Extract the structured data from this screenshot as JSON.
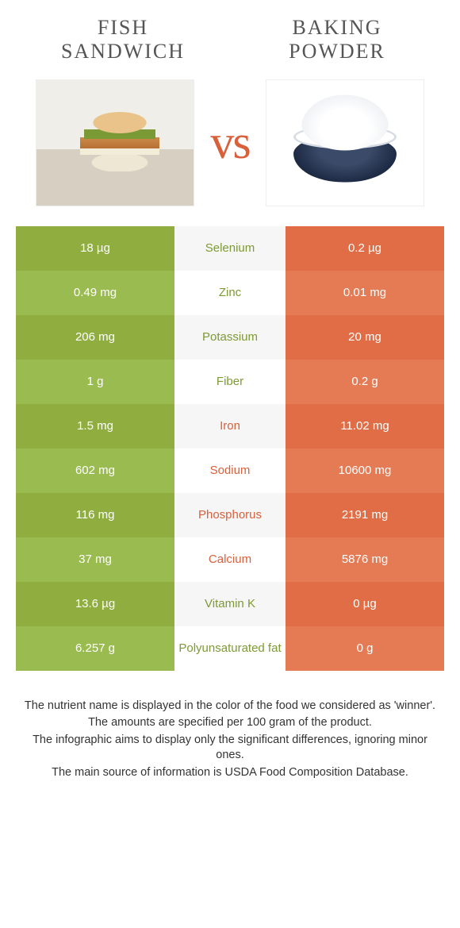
{
  "header": {
    "food_left": "Fish\nSandwich",
    "food_right": "Baking\nPowder",
    "vs": "vs"
  },
  "colors": {
    "green_dark": "#8fae3f",
    "green_light": "#9abb50",
    "orange_dark": "#e06d45",
    "orange_light": "#e57b55",
    "label_green": "#7d9a34",
    "label_orange": "#d8603b",
    "vs_color": "#d8603b"
  },
  "table": {
    "rows": [
      {
        "nutrient": "Selenium",
        "left": "18 µg",
        "right": "0.2 µg",
        "winner": "left"
      },
      {
        "nutrient": "Zinc",
        "left": "0.49 mg",
        "right": "0.01 mg",
        "winner": "left"
      },
      {
        "nutrient": "Potassium",
        "left": "206 mg",
        "right": "20 mg",
        "winner": "left"
      },
      {
        "nutrient": "Fiber",
        "left": "1 g",
        "right": "0.2 g",
        "winner": "left"
      },
      {
        "nutrient": "Iron",
        "left": "1.5 mg",
        "right": "11.02 mg",
        "winner": "right"
      },
      {
        "nutrient": "Sodium",
        "left": "602 mg",
        "right": "10600 mg",
        "winner": "right"
      },
      {
        "nutrient": "Phosphorus",
        "left": "116 mg",
        "right": "2191 mg",
        "winner": "right"
      },
      {
        "nutrient": "Calcium",
        "left": "37 mg",
        "right": "5876 mg",
        "winner": "right"
      },
      {
        "nutrient": "Vitamin K",
        "left": "13.6 µg",
        "right": "0 µg",
        "winner": "left"
      },
      {
        "nutrient": "Polyunsaturated fat",
        "left": "6.257 g",
        "right": "0 g",
        "winner": "left"
      }
    ]
  },
  "footnotes": [
    "The nutrient name is displayed in the color of the food we considered as 'winner'.",
    "The amounts are specified per 100 gram of the product.",
    "The infographic aims to display only the significant differences, ignoring minor ones.",
    "The main source of information is USDA Food Composition Database."
  ]
}
